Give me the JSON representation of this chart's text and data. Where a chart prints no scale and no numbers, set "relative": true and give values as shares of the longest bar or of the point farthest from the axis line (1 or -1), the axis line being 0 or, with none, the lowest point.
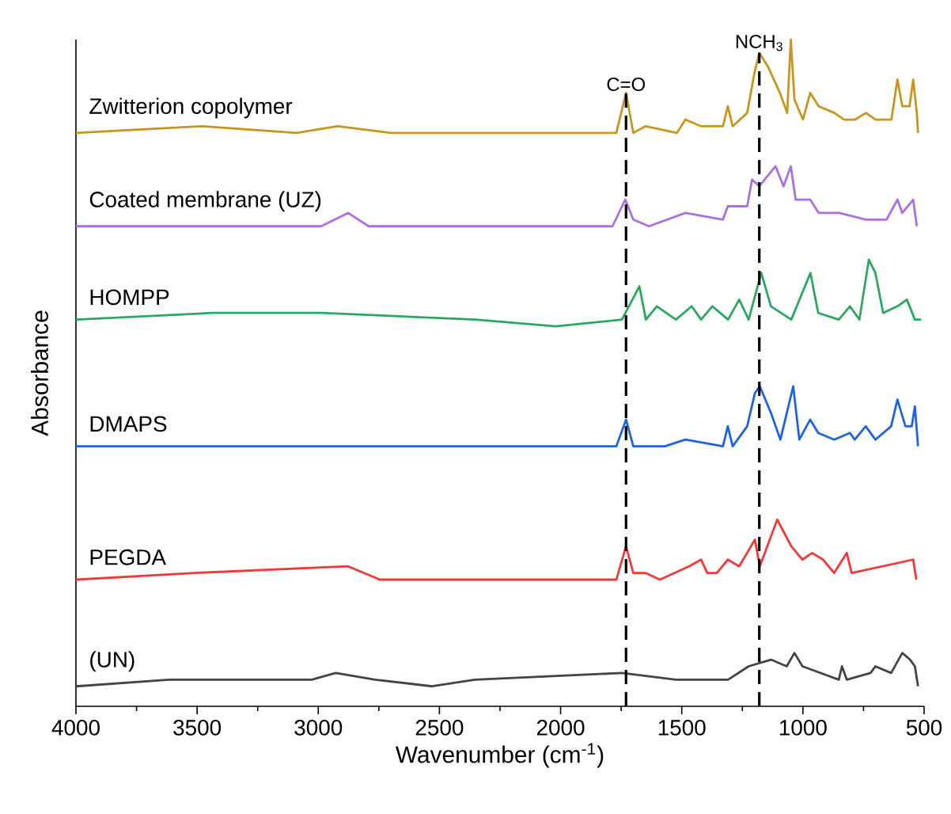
{
  "chart_data": {
    "type": "line",
    "relative": true,
    "xlabel": "Wavenumber (cm$^{-1}$)",
    "ylabel": "Absorbance",
    "xlim": [
      4000,
      500
    ],
    "xticks": [
      4000,
      3500,
      3000,
      2500,
      2000,
      1500,
      1000,
      500
    ],
    "tick_labels": "x",
    "series": [
      {
        "name": "Zwitterion copolymer",
        "color": "#c8961e",
        "x": [
          4000,
          3480,
          3090,
          2920,
          2700,
          2350,
          1770,
          1730,
          1700,
          1650,
          1520,
          1485,
          1420,
          1330,
          1310,
          1290,
          1230,
          1200,
          1180,
          1145,
          1095,
          1065,
          1050,
          1035,
          1000,
          970,
          935,
          870,
          830,
          785,
          740,
          700,
          635,
          610,
          590,
          560,
          545,
          530,
          525
        ],
        "values": [
          0.86,
          0.87,
          0.86,
          0.87,
          0.86,
          0.86,
          0.86,
          0.92,
          0.86,
          0.87,
          0.86,
          0.88,
          0.87,
          0.87,
          0.9,
          0.87,
          0.89,
          0.95,
          0.98,
          0.96,
          0.92,
          0.89,
          1.0,
          0.91,
          0.88,
          0.92,
          0.9,
          0.89,
          0.88,
          0.88,
          0.89,
          0.88,
          0.88,
          0.94,
          0.9,
          0.9,
          0.94,
          0.89,
          0.86
        ]
      },
      {
        "name": "Coated membrane (UZ)",
        "color": "#a970e0",
        "x": [
          4000,
          2988,
          2877,
          2792,
          1786,
          1733,
          1700,
          1635,
          1485,
          1330,
          1310,
          1230,
          1210,
          1180,
          1113,
          1080,
          1050,
          1030,
          970,
          935,
          850,
          740,
          655,
          610,
          590,
          545,
          530
        ],
        "values": [
          0.72,
          0.72,
          0.74,
          0.72,
          0.72,
          0.76,
          0.73,
          0.72,
          0.74,
          0.73,
          0.75,
          0.75,
          0.79,
          0.78,
          0.81,
          0.78,
          0.81,
          0.76,
          0.76,
          0.74,
          0.74,
          0.73,
          0.73,
          0.76,
          0.74,
          0.76,
          0.72
        ]
      },
      {
        "name": "HOMPP",
        "color": "#2aa860",
        "x": [
          4000,
          3440,
          2988,
          2350,
          2020,
          1747,
          1675,
          1648,
          1603,
          1524,
          1459,
          1420,
          1374,
          1309,
          1263,
          1224,
          1172,
          1132,
          1048,
          969,
          937,
          852,
          806,
          767,
          728,
          701,
          669,
          610,
          571,
          538,
          512
        ],
        "values": [
          0.58,
          0.59,
          0.59,
          0.58,
          0.57,
          0.58,
          0.63,
          0.58,
          0.6,
          0.58,
          0.6,
          0.58,
          0.6,
          0.58,
          0.61,
          0.58,
          0.65,
          0.6,
          0.58,
          0.65,
          0.59,
          0.58,
          0.6,
          0.58,
          0.67,
          0.65,
          0.59,
          0.6,
          0.61,
          0.58,
          0.58
        ]
      },
      {
        "name": "DMAPS",
        "color": "#1f63e0",
        "x": [
          4000,
          3440,
          2990,
          2350,
          1770,
          1730,
          1700,
          1635,
          1570,
          1485,
          1330,
          1310,
          1290,
          1230,
          1198,
          1178,
          1132,
          1093,
          1040,
          1015,
          970,
          937,
          871,
          806,
          786,
          741,
          701,
          636,
          610,
          577,
          551,
          538,
          525
        ],
        "values": [
          0.39,
          0.39,
          0.39,
          0.39,
          0.39,
          0.43,
          0.39,
          0.39,
          0.39,
          0.4,
          0.39,
          0.42,
          0.39,
          0.42,
          0.47,
          0.48,
          0.44,
          0.4,
          0.48,
          0.4,
          0.43,
          0.41,
          0.4,
          0.41,
          0.4,
          0.42,
          0.4,
          0.42,
          0.46,
          0.42,
          0.42,
          0.45,
          0.39
        ]
      },
      {
        "name": "PEGDA",
        "color": "#f03a3a",
        "x": [
          4000,
          3510,
          2877,
          2746,
          2350,
          1770,
          1730,
          1700,
          1650,
          1590,
          1470,
          1420,
          1395,
          1355,
          1310,
          1263,
          1198,
          1178,
          1106,
          1048,
          1002,
          962,
          917,
          871,
          819,
          799,
          545,
          532
        ],
        "values": [
          0.19,
          0.2,
          0.21,
          0.19,
          0.19,
          0.19,
          0.24,
          0.2,
          0.2,
          0.19,
          0.21,
          0.22,
          0.2,
          0.2,
          0.22,
          0.21,
          0.25,
          0.21,
          0.28,
          0.24,
          0.22,
          0.23,
          0.22,
          0.2,
          0.23,
          0.2,
          0.22,
          0.19
        ]
      },
      {
        "name": "(UN)",
        "color": "#444444",
        "x": [
          4000,
          3615,
          3440,
          3027,
          2928,
          2765,
          2530,
          2354,
          1747,
          1524,
          1459,
          1309,
          1224,
          1132,
          1067,
          1035,
          1002,
          852,
          839,
          819,
          721,
          701,
          636,
          590,
          558,
          538,
          525
        ],
        "values": [
          0.03,
          0.04,
          0.04,
          0.04,
          0.05,
          0.04,
          0.03,
          0.04,
          0.05,
          0.04,
          0.04,
          0.04,
          0.06,
          0.07,
          0.06,
          0.08,
          0.06,
          0.04,
          0.06,
          0.04,
          0.05,
          0.06,
          0.05,
          0.08,
          0.07,
          0.06,
          0.03
        ]
      }
    ],
    "ref_lines": [
      {
        "axis": "x",
        "value": 1730,
        "label": "C=O",
        "line_style": "dashed"
      },
      {
        "axis": "x",
        "value": 1180,
        "label": "NCH$_{3}$",
        "line_style": "dashed"
      }
    ]
  }
}
